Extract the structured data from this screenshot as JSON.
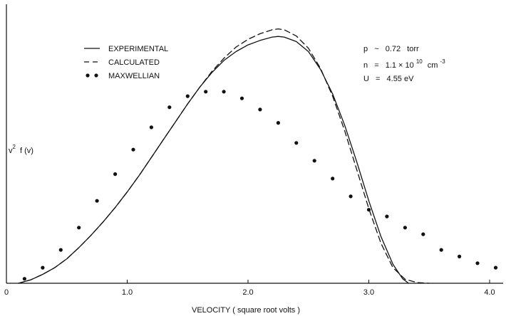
{
  "chart_data": {
    "type": "line",
    "title": "",
    "xlabel": "VELOCITY ( square root volts )",
    "ylabel": "v² f (v)",
    "xlim": [
      0,
      4.1
    ],
    "ylim": [
      0,
      1.1
    ],
    "grid": false,
    "x_ticks": [
      {
        "value": 0,
        "label": "0"
      },
      {
        "value": 1.0,
        "label": "1.0"
      },
      {
        "value": 2.0,
        "label": "2.0"
      },
      {
        "value": 3.0,
        "label": "3.0"
      },
      {
        "value": 4.0,
        "label": "4.0"
      }
    ],
    "legend": {
      "placement": "top-left",
      "entries": [
        {
          "label": "EXPERIMENTAL",
          "style": "solid"
        },
        {
          "label": "CALCULATED",
          "style": "dashed"
        },
        {
          "label": "MAXWELLIAN",
          "style": "dots"
        }
      ]
    },
    "annotations": {
      "p": {
        "prefix": "p",
        "eq": "~",
        "value": "0.72",
        "unit": "torr"
      },
      "n": {
        "prefix": "n",
        "eq": "=",
        "mantissa": "1.1 × 10",
        "exp": "10",
        "unit": "cm",
        "unit_exp": "-3"
      },
      "u": {
        "prefix": "U",
        "eq": "=",
        "value": "4.55 eV"
      }
    },
    "series": [
      {
        "name": "EXPERIMENTAL",
        "style": "solid",
        "x": [
          0.1,
          0.2,
          0.3,
          0.4,
          0.5,
          0.6,
          0.7,
          0.8,
          0.9,
          1.0,
          1.1,
          1.2,
          1.3,
          1.4,
          1.5,
          1.6,
          1.7,
          1.8,
          1.9,
          2.0,
          2.1,
          2.2,
          2.25,
          2.3,
          2.4,
          2.5,
          2.6,
          2.7,
          2.8,
          2.9,
          3.0,
          3.1,
          3.2,
          3.28,
          3.33
        ],
        "y": [
          0.0,
          0.015,
          0.04,
          0.07,
          0.11,
          0.16,
          0.215,
          0.275,
          0.34,
          0.41,
          0.485,
          0.565,
          0.645,
          0.725,
          0.805,
          0.88,
          0.945,
          1.0,
          1.04,
          1.07,
          1.09,
          1.105,
          1.108,
          1.105,
          1.085,
          1.04,
          0.96,
          0.85,
          0.71,
          0.545,
          0.37,
          0.21,
          0.085,
          0.02,
          0.0
        ]
      },
      {
        "name": "CALCULATED",
        "style": "dashed",
        "x": [
          0.1,
          0.2,
          0.3,
          0.4,
          0.5,
          0.6,
          0.7,
          0.8,
          0.9,
          1.0,
          1.1,
          1.2,
          1.3,
          1.4,
          1.5,
          1.6,
          1.7,
          1.8,
          1.9,
          2.0,
          2.1,
          2.2,
          2.25,
          2.3,
          2.4,
          2.5,
          2.6,
          2.7,
          2.8,
          2.9,
          3.0,
          3.1,
          3.2,
          3.3,
          3.4,
          3.5
        ],
        "y": [
          0.0,
          0.015,
          0.04,
          0.07,
          0.11,
          0.16,
          0.215,
          0.275,
          0.34,
          0.41,
          0.485,
          0.565,
          0.645,
          0.725,
          0.805,
          0.88,
          0.95,
          1.01,
          1.06,
          1.095,
          1.12,
          1.138,
          1.142,
          1.138,
          1.11,
          1.055,
          0.965,
          0.84,
          0.685,
          0.51,
          0.335,
          0.18,
          0.07,
          0.018,
          0.003,
          0.0
        ]
      },
      {
        "name": "MAXWELLIAN",
        "style": "dots",
        "x": [
          0.15,
          0.3,
          0.45,
          0.6,
          0.75,
          0.9,
          1.05,
          1.2,
          1.35,
          1.5,
          1.65,
          1.8,
          1.95,
          2.1,
          2.25,
          2.4,
          2.55,
          2.7,
          2.85,
          3.0,
          3.15,
          3.3,
          3.45,
          3.6,
          3.75,
          3.9,
          4.05
        ],
        "y": [
          0.02,
          0.07,
          0.15,
          0.25,
          0.37,
          0.49,
          0.6,
          0.7,
          0.79,
          0.84,
          0.86,
          0.86,
          0.83,
          0.78,
          0.72,
          0.63,
          0.55,
          0.47,
          0.39,
          0.33,
          0.3,
          0.25,
          0.22,
          0.15,
          0.12,
          0.09,
          0.07
        ]
      }
    ]
  }
}
